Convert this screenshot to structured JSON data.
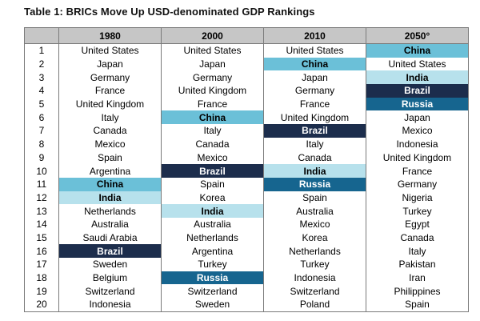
{
  "title": "Table 1: BRICs Move Up USD-denominated GDP Rankings",
  "headers": [
    "",
    "1980",
    "2000",
    "2010",
    "2050°"
  ],
  "highlight_colors": {
    "navy": "#1c2d4c",
    "blue": "#16658f",
    "teal": "#6bc0d8",
    "light": "#b7e1ec"
  },
  "rows": [
    {
      "rank": "1",
      "cells": [
        {
          "text": "United States"
        },
        {
          "text": "United States"
        },
        {
          "text": "United States"
        },
        {
          "text": "China",
          "hl": "teal"
        }
      ]
    },
    {
      "rank": "2",
      "cells": [
        {
          "text": "Japan"
        },
        {
          "text": "Japan"
        },
        {
          "text": "China",
          "hl": "teal"
        },
        {
          "text": "United States"
        }
      ]
    },
    {
      "rank": "3",
      "cells": [
        {
          "text": "Germany"
        },
        {
          "text": "Germany"
        },
        {
          "text": "Japan"
        },
        {
          "text": "India",
          "hl": "light"
        }
      ]
    },
    {
      "rank": "4",
      "cells": [
        {
          "text": "France"
        },
        {
          "text": "United Kingdom"
        },
        {
          "text": "Germany"
        },
        {
          "text": "Brazil",
          "hl": "navy"
        }
      ]
    },
    {
      "rank": "5",
      "cells": [
        {
          "text": "United Kingdom"
        },
        {
          "text": "France"
        },
        {
          "text": "France"
        },
        {
          "text": "Russia",
          "hl": "blue"
        }
      ]
    },
    {
      "rank": "6",
      "cells": [
        {
          "text": "Italy"
        },
        {
          "text": "China",
          "hl": "teal"
        },
        {
          "text": "United Kingdom"
        },
        {
          "text": "Japan"
        }
      ]
    },
    {
      "rank": "7",
      "cells": [
        {
          "text": "Canada"
        },
        {
          "text": "Italy"
        },
        {
          "text": "Brazil",
          "hl": "navy"
        },
        {
          "text": "Mexico"
        }
      ]
    },
    {
      "rank": "8",
      "cells": [
        {
          "text": "Mexico"
        },
        {
          "text": "Canada"
        },
        {
          "text": "Italy"
        },
        {
          "text": "Indonesia"
        }
      ]
    },
    {
      "rank": "9",
      "cells": [
        {
          "text": "Spain"
        },
        {
          "text": "Mexico"
        },
        {
          "text": "Canada"
        },
        {
          "text": "United Kingdom"
        }
      ]
    },
    {
      "rank": "10",
      "cells": [
        {
          "text": "Argentina"
        },
        {
          "text": "Brazil",
          "hl": "navy"
        },
        {
          "text": "India",
          "hl": "light"
        },
        {
          "text": "France"
        }
      ]
    },
    {
      "rank": "11",
      "cells": [
        {
          "text": "China",
          "hl": "teal"
        },
        {
          "text": "Spain"
        },
        {
          "text": "Russia",
          "hl": "blue"
        },
        {
          "text": "Germany"
        }
      ]
    },
    {
      "rank": "12",
      "cells": [
        {
          "text": "India",
          "hl": "light"
        },
        {
          "text": "Korea"
        },
        {
          "text": "Spain"
        },
        {
          "text": "Nigeria"
        }
      ]
    },
    {
      "rank": "13",
      "cells": [
        {
          "text": "Netherlands"
        },
        {
          "text": "India",
          "hl": "light"
        },
        {
          "text": "Australia"
        },
        {
          "text": "Turkey"
        }
      ]
    },
    {
      "rank": "14",
      "cells": [
        {
          "text": "Australia"
        },
        {
          "text": "Australia"
        },
        {
          "text": "Mexico"
        },
        {
          "text": "Egypt"
        }
      ]
    },
    {
      "rank": "15",
      "cells": [
        {
          "text": "Saudi Arabia"
        },
        {
          "text": "Netherlands"
        },
        {
          "text": "Korea"
        },
        {
          "text": "Canada"
        }
      ]
    },
    {
      "rank": "16",
      "cells": [
        {
          "text": "Brazil",
          "hl": "navy"
        },
        {
          "text": "Argentina"
        },
        {
          "text": "Netherlands"
        },
        {
          "text": "Italy"
        }
      ]
    },
    {
      "rank": "17",
      "cells": [
        {
          "text": "Sweden"
        },
        {
          "text": "Turkey"
        },
        {
          "text": "Turkey"
        },
        {
          "text": "Pakistan"
        }
      ]
    },
    {
      "rank": "18",
      "cells": [
        {
          "text": "Belgium"
        },
        {
          "text": "Russia",
          "hl": "blue"
        },
        {
          "text": "Indonesia"
        },
        {
          "text": "Iran"
        }
      ]
    },
    {
      "rank": "19",
      "cells": [
        {
          "text": "Switzerland"
        },
        {
          "text": "Switzerland"
        },
        {
          "text": "Switzerland"
        },
        {
          "text": "Philippines"
        }
      ]
    },
    {
      "rank": "20",
      "cells": [
        {
          "text": "Indonesia"
        },
        {
          "text": "Sweden"
        },
        {
          "text": "Poland"
        },
        {
          "text": "Spain"
        }
      ]
    }
  ]
}
